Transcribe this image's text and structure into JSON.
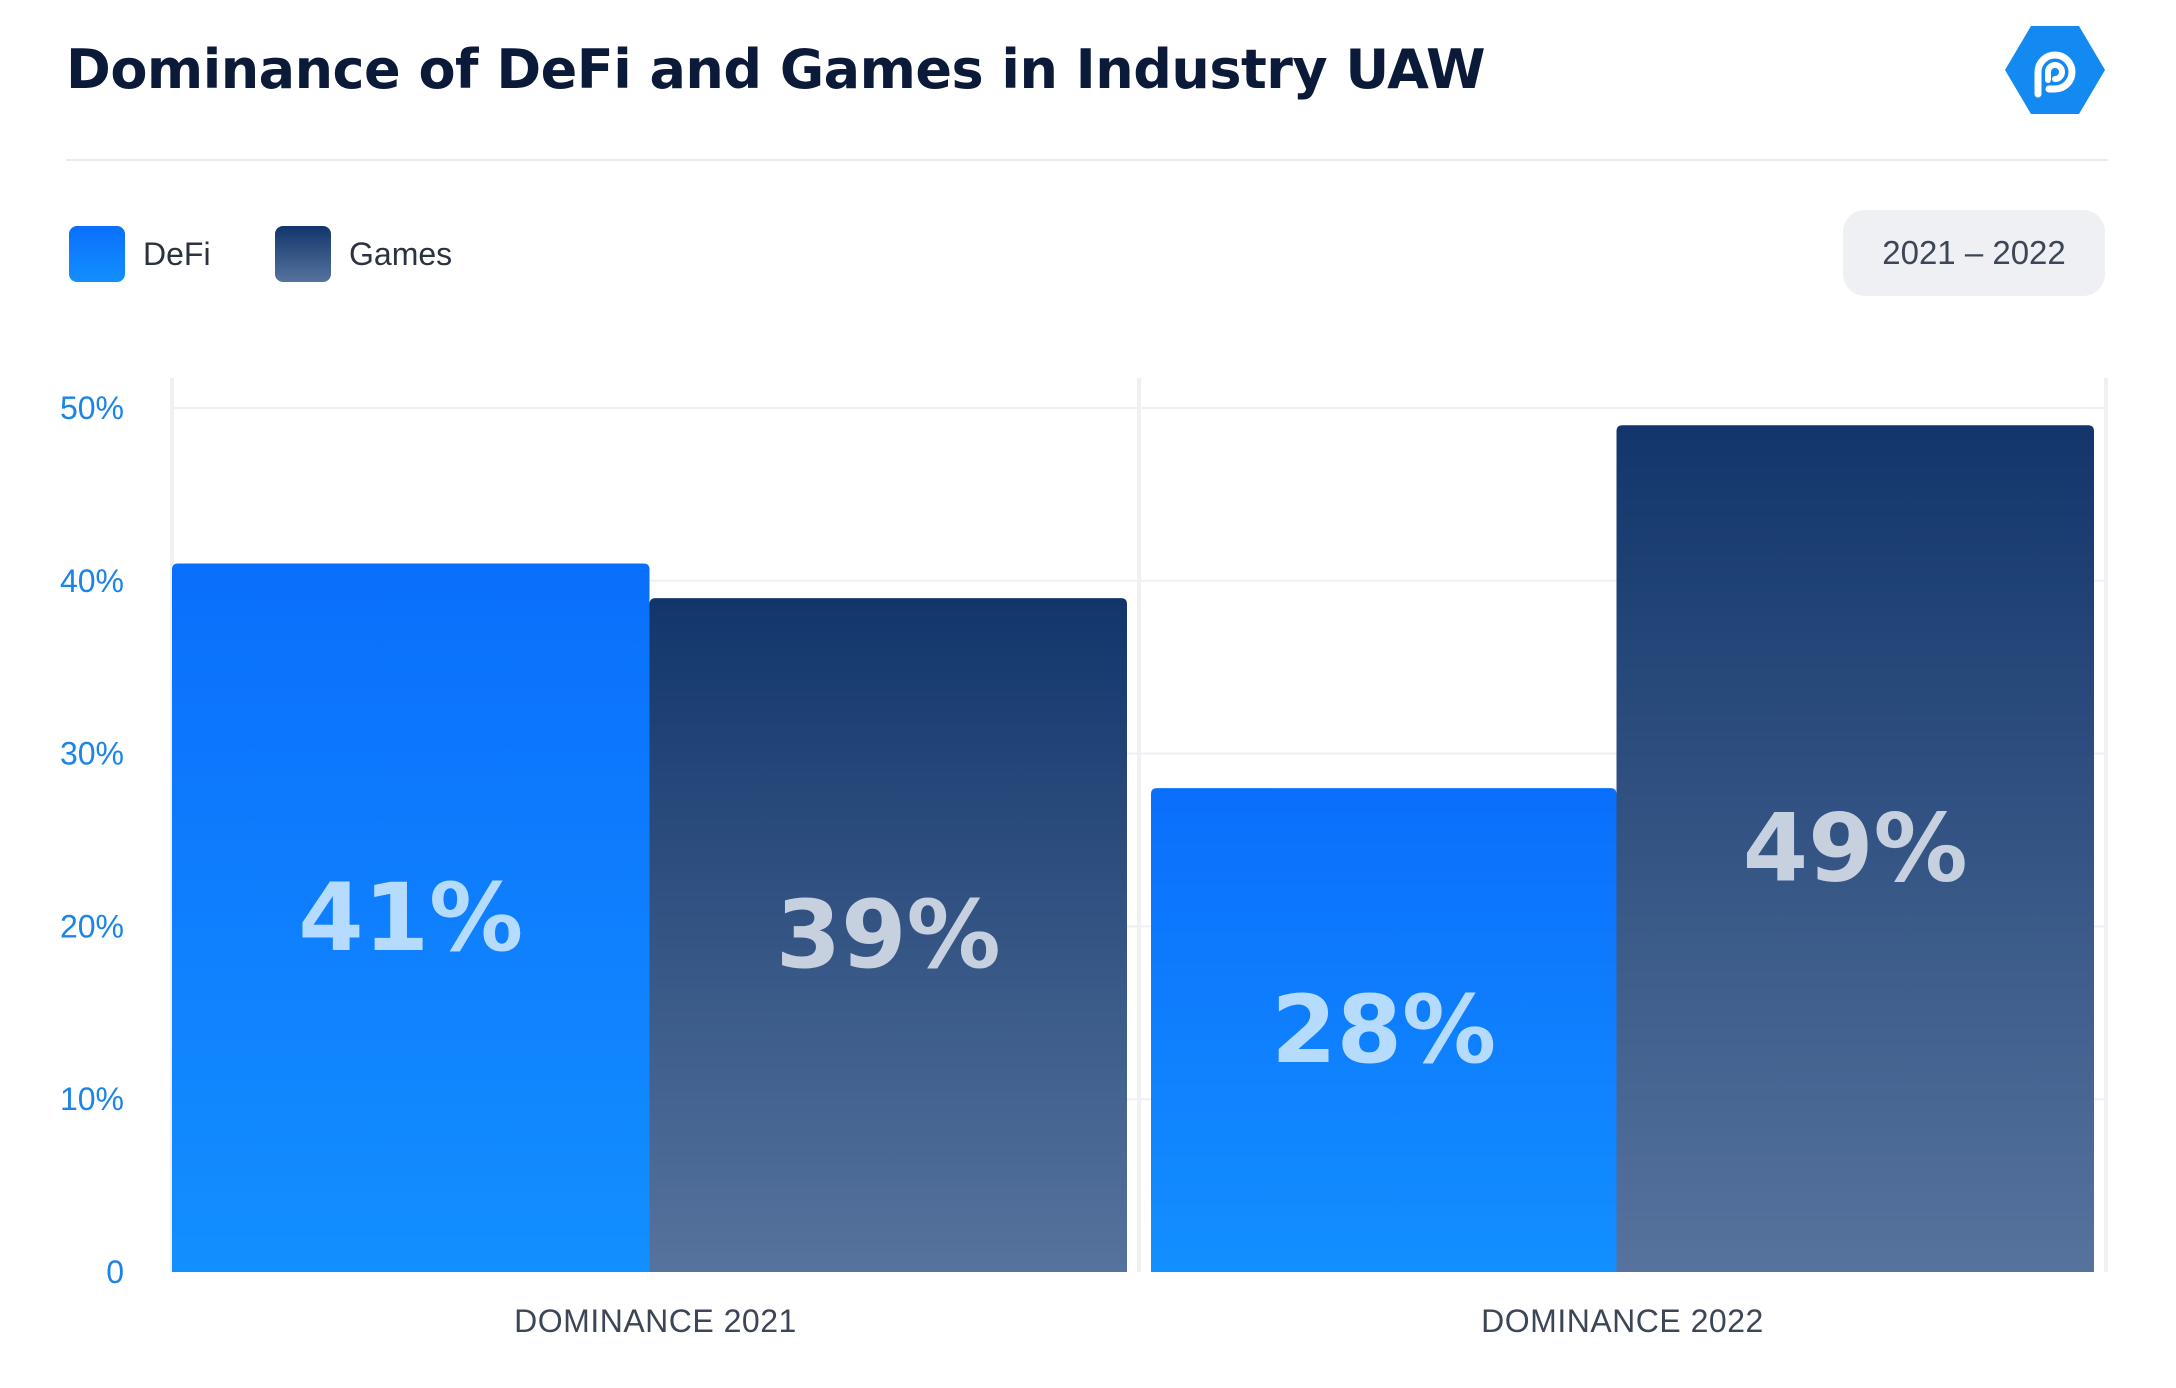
{
  "header": {
    "title": "Dominance of DeFi and Games in Industry UAW",
    "range_label": "2021 – 2022",
    "logo_icon": "dappradar-logo-icon"
  },
  "colors": {
    "defi_top": "#0a6ffc",
    "defi_bottom": "#138fff",
    "games_top": "#12366b",
    "games_bottom": "#56739d",
    "defi_label": "#b5dcff",
    "games_label": "#c6d0de",
    "tick": "#1a84e8",
    "logo": "#1389f2"
  },
  "chart_data": {
    "type": "bar",
    "title": "Dominance of DeFi and Games in Industry UAW",
    "categories": [
      "DOMINANCE 2021",
      "DOMINANCE 2022"
    ],
    "series": [
      {
        "name": "DeFi",
        "values": [
          41,
          28
        ],
        "labels": [
          "41%",
          "28%"
        ]
      },
      {
        "name": "Games",
        "values": [
          39,
          49
        ],
        "labels": [
          "39%",
          "49%"
        ]
      }
    ],
    "ylim": [
      0,
      50
    ],
    "yticks": [
      0,
      10,
      20,
      30,
      40,
      50
    ],
    "ytick_labels": [
      "0",
      "10%",
      "20%",
      "30%",
      "40%",
      "50%"
    ],
    "grid": true,
    "legend_position": "top-left",
    "xlabel": "",
    "ylabel": ""
  }
}
